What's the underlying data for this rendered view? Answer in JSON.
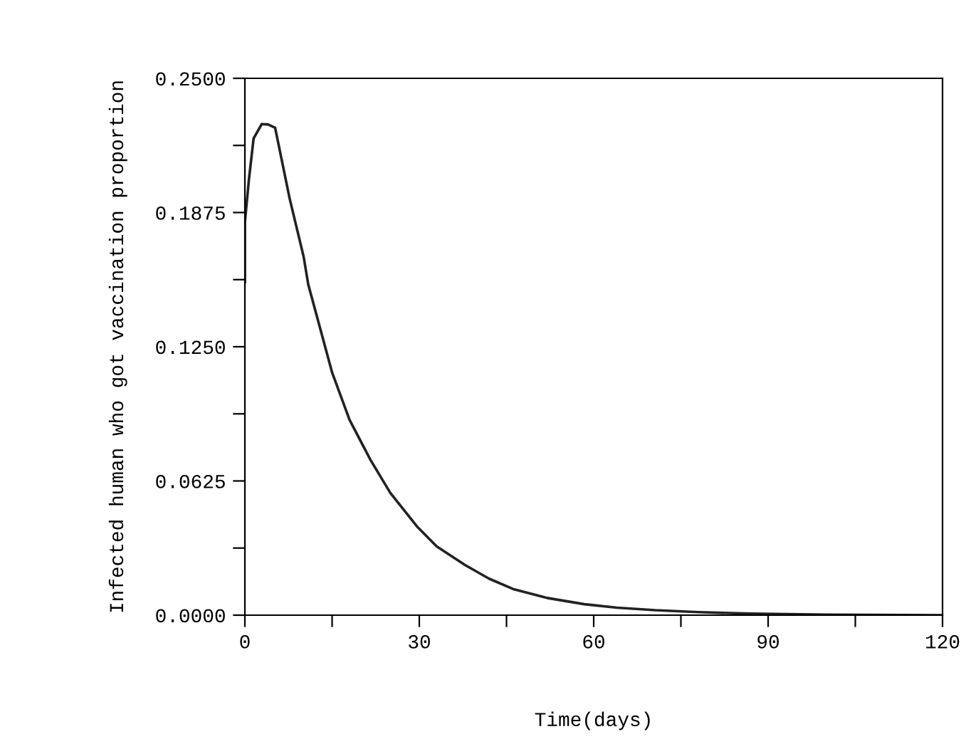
{
  "chart_data": {
    "type": "line",
    "xlabel": "Time(days)",
    "ylabel": "Infected human who got vaccination proportion",
    "x": [
      0,
      0,
      0.7,
      1.5,
      2.9,
      4.0,
      5.2,
      7.7,
      10.1,
      10.9,
      14.2,
      15.0,
      18.0,
      21.6,
      25.0,
      29.7,
      33.0,
      37.9,
      42.0,
      46.1,
      52.0,
      58.4,
      64.0,
      70.6,
      78.0,
      87,
      100,
      120
    ],
    "series": [
      {
        "color": "#222222",
        "values": [
          0.155,
          0.183,
          0.203,
          0.222,
          0.2287,
          0.2285,
          0.227,
          0.194,
          0.167,
          0.154,
          0.121,
          0.113,
          0.091,
          0.0723,
          0.057,
          0.041,
          0.032,
          0.0233,
          0.017,
          0.0122,
          0.008,
          0.0051,
          0.0035,
          0.0023,
          0.0014,
          0.0007,
          0.0002,
          0.0
        ]
      }
    ],
    "xlim": [
      0,
      120
    ],
    "ylim": [
      0,
      0.25
    ],
    "xticks": [
      0,
      {
        "value": 15,
        "label": null
      },
      30,
      {
        "value": 45,
        "label": null
      },
      60,
      {
        "value": 75,
        "label": null
      },
      90,
      {
        "value": 105,
        "label": null
      },
      120
    ],
    "yticks": [
      {
        "value": 0,
        "label": "0.0000"
      },
      {
        "value": 0.03125,
        "label": null
      },
      {
        "value": 0.0625,
        "label": "0.0625"
      },
      {
        "value": 0.09375,
        "label": null
      },
      {
        "value": 0.125,
        "label": "0.1250"
      },
      {
        "value": 0.15625,
        "label": null
      },
      {
        "value": 0.1875,
        "label": "0.1875"
      },
      {
        "value": 0.21875,
        "label": null
      },
      {
        "value": 0.25,
        "label": "0.2500"
      }
    ],
    "grid": false,
    "line_style": "solid",
    "marker": "none"
  }
}
